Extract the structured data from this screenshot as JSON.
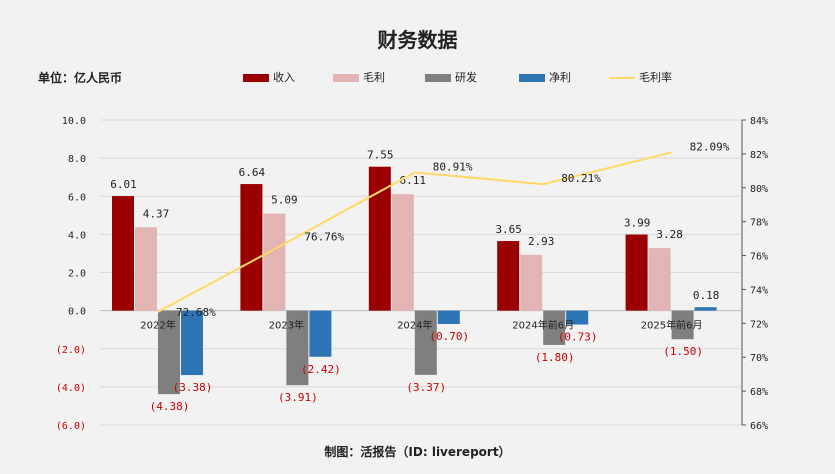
{
  "title": "财务数据",
  "unit_label": "单位：亿人民币",
  "source_label": "制图：活报告（ID: livereport）",
  "colors": {
    "revenue": "#9b0000",
    "gross_profit": "#e3b4b4",
    "rnd": "#7f7f7f",
    "net_profit": "#2e75b6",
    "margin_line": "#ffd966",
    "negative_text": "#cc0000"
  },
  "chart_data": {
    "type": "bar",
    "title": "财务数据",
    "categories": [
      "2022年",
      "2023年",
      "2024年",
      "2024年前6月",
      "2025年前6月"
    ],
    "series": [
      {
        "name": "收入",
        "values": [
          6.01,
          6.64,
          7.55,
          3.65,
          3.99
        ],
        "labels": [
          "6.01",
          "6.64",
          "7.55",
          "3.65",
          "3.99"
        ]
      },
      {
        "name": "毛利",
        "values": [
          4.37,
          5.09,
          6.11,
          2.93,
          3.28
        ],
        "labels": [
          "4.37",
          "5.09",
          "6.11",
          "2.93",
          "3.28"
        ]
      },
      {
        "name": "研发",
        "values": [
          -4.38,
          -3.91,
          -3.37,
          -1.8,
          -1.5
        ],
        "labels": [
          "(4.38)",
          "(3.91)",
          "(3.37)",
          "(1.80)",
          "(1.50)"
        ]
      },
      {
        "name": "净利",
        "values": [
          -3.38,
          -2.42,
          -0.7,
          -0.73,
          0.18
        ],
        "labels": [
          "(3.38)",
          "(2.42)",
          "(0.70)",
          "(0.73)",
          "0.18"
        ]
      },
      {
        "name": "毛利率",
        "type": "line",
        "axis": "right",
        "values": [
          72.68,
          76.76,
          80.91,
          80.21,
          82.09
        ],
        "labels": [
          "72.68%",
          "76.76%",
          "80.91%",
          "80.21%",
          "82.09%"
        ]
      }
    ],
    "left_axis": {
      "ylim": [
        -6,
        10
      ],
      "ticks": [
        10,
        8,
        6,
        4,
        2,
        0,
        -2,
        -4,
        -6
      ],
      "tick_labels": [
        "10.0",
        "8.0",
        "6.0",
        "4.0",
        "2.0",
        "0.0",
        "(2.0)",
        "(4.0)",
        "(6.0)"
      ]
    },
    "right_axis": {
      "ylim": [
        66,
        84
      ],
      "ticks": [
        84,
        82,
        80,
        78,
        76,
        74,
        72,
        70,
        68,
        66
      ],
      "tick_labels": [
        "84%",
        "82%",
        "80%",
        "78%",
        "76%",
        "74%",
        "72%",
        "70%",
        "68%",
        "66%"
      ]
    },
    "grid": true,
    "legend_position": "top"
  }
}
